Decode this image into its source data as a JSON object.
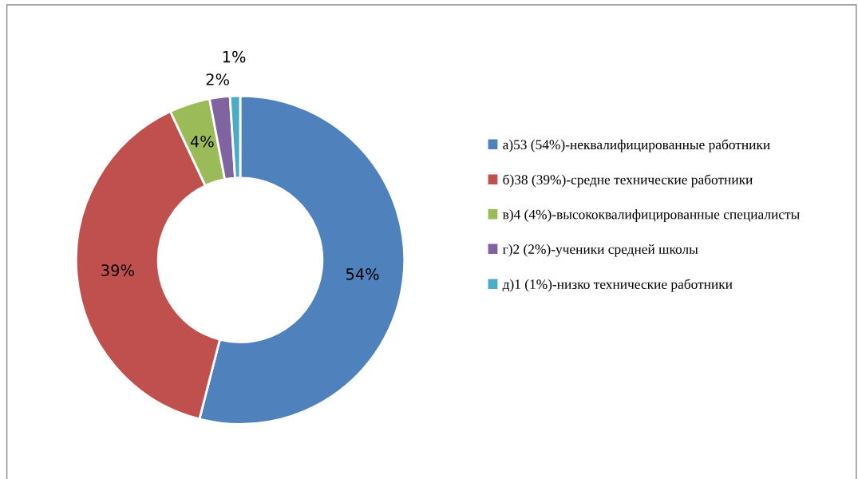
{
  "chart_data": {
    "type": "donut",
    "categories": [
      "а)53 (54%)-неквалифицированные работники",
      "б)38 (39%)-средне технические работники",
      "в)4 (4%)-высококвалифицированные специалисты",
      "г)2 (2%)-ученики средней школы",
      "д)1 (1%)-низко технические работники"
    ],
    "values": [
      54,
      39,
      4,
      2,
      1
    ],
    "value_labels": [
      "54%",
      "39%",
      "4%",
      "2%",
      "1%"
    ],
    "colors": [
      "#4f81bd",
      "#c0504d",
      "#9bbb59",
      "#8064a2",
      "#4bacc6"
    ],
    "legend": "right"
  }
}
